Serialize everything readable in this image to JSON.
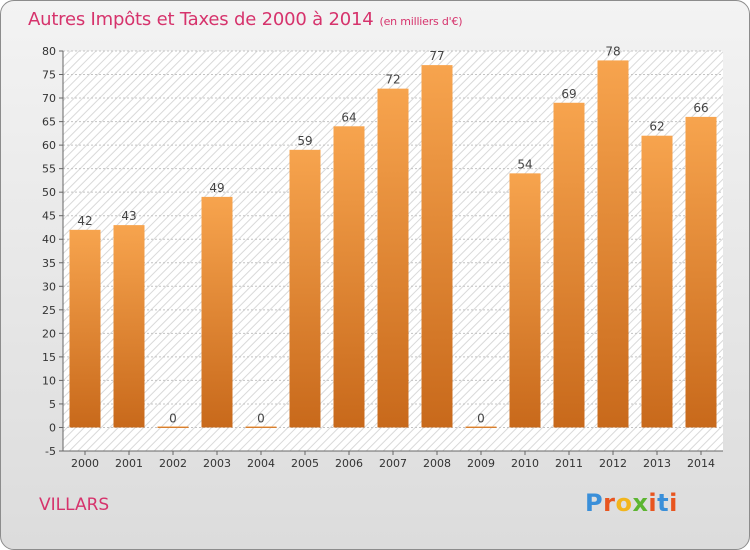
{
  "header": {
    "title": "Autres Impôts et Taxes de 2000 à 2014",
    "subtitle": "(en milliers d'€)"
  },
  "footer": {
    "commune": "VILLARS",
    "brand": "Proxiti"
  },
  "colors": {
    "accent": "#d6336c",
    "bar_top": "#f7a44e",
    "bar_bottom": "#c8691b"
  },
  "chart_data": {
    "type": "bar",
    "title": "Autres Impôts et Taxes de 2000 à 2014",
    "subtitle": "(en milliers d'€)",
    "xlabel": "",
    "ylabel": "",
    "categories": [
      "2000",
      "2001",
      "2002",
      "2003",
      "2004",
      "2005",
      "2006",
      "2007",
      "2008",
      "2009",
      "2010",
      "2011",
      "2012",
      "2013",
      "2014"
    ],
    "values": [
      42,
      43,
      0,
      49,
      0,
      59,
      64,
      72,
      77,
      0,
      54,
      69,
      78,
      62,
      66
    ],
    "ylim": [
      -5,
      80
    ],
    "yticks": [
      -5,
      0,
      5,
      10,
      15,
      20,
      25,
      30,
      35,
      40,
      45,
      50,
      55,
      60,
      65,
      70,
      75,
      80
    ],
    "grid": true,
    "legend": "none"
  }
}
